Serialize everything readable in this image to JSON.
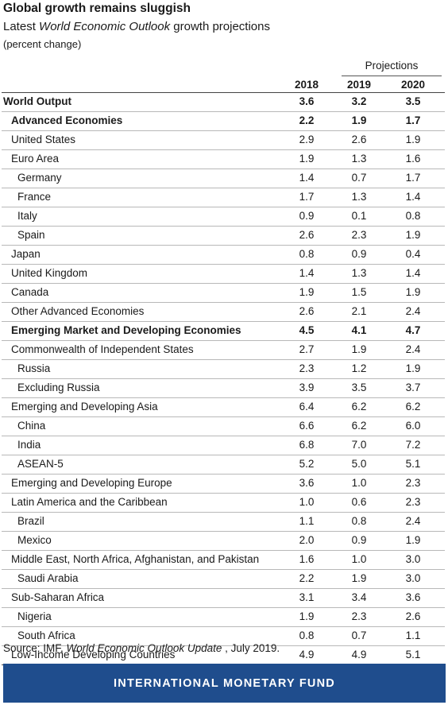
{
  "title": "Global growth remains sluggish",
  "subtitle": {
    "prefix": "Latest ",
    "italic": "World Economic Outlook",
    "suffix": " growth projections"
  },
  "unit": "(percent change)",
  "projections_label": "Projections",
  "years": [
    "2018",
    "2019",
    "2020"
  ],
  "rows": [
    {
      "label": "World Output",
      "indent": 0,
      "bold": true,
      "values": [
        "3.6",
        "3.2",
        "3.5"
      ]
    },
    {
      "label": "Advanced Economies",
      "indent": 1,
      "bold": true,
      "values": [
        "2.2",
        "1.9",
        "1.7"
      ]
    },
    {
      "label": "United States",
      "indent": 1,
      "bold": false,
      "values": [
        "2.9",
        "2.6",
        "1.9"
      ]
    },
    {
      "label": "Euro Area",
      "indent": 1,
      "bold": false,
      "values": [
        "1.9",
        "1.3",
        "1.6"
      ]
    },
    {
      "label": "Germany",
      "indent": 2,
      "bold": false,
      "values": [
        "1.4",
        "0.7",
        "1.7"
      ]
    },
    {
      "label": "France",
      "indent": 2,
      "bold": false,
      "values": [
        "1.7",
        "1.3",
        "1.4"
      ]
    },
    {
      "label": "Italy",
      "indent": 2,
      "bold": false,
      "values": [
        "0.9",
        "0.1",
        "0.8"
      ]
    },
    {
      "label": "Spain",
      "indent": 2,
      "bold": false,
      "values": [
        "2.6",
        "2.3",
        "1.9"
      ]
    },
    {
      "label": "Japan",
      "indent": 1,
      "bold": false,
      "values": [
        "0.8",
        "0.9",
        "0.4"
      ]
    },
    {
      "label": "United Kingdom",
      "indent": 1,
      "bold": false,
      "values": [
        "1.4",
        "1.3",
        "1.4"
      ]
    },
    {
      "label": "Canada",
      "indent": 1,
      "bold": false,
      "values": [
        "1.9",
        "1.5",
        "1.9"
      ]
    },
    {
      "label": "Other Advanced Economies",
      "indent": 1,
      "bold": false,
      "values": [
        "2.6",
        "2.1",
        "2.4"
      ]
    },
    {
      "label": "Emerging Market and Developing Economies",
      "indent": 1,
      "bold": true,
      "values": [
        "4.5",
        "4.1",
        "4.7"
      ]
    },
    {
      "label": "Commonwealth of Independent States",
      "indent": 1,
      "bold": false,
      "values": [
        "2.7",
        "1.9",
        "2.4"
      ]
    },
    {
      "label": "Russia",
      "indent": 2,
      "bold": false,
      "values": [
        "2.3",
        "1.2",
        "1.9"
      ]
    },
    {
      "label": "Excluding Russia",
      "indent": 2,
      "bold": false,
      "values": [
        "3.9",
        "3.5",
        "3.7"
      ]
    },
    {
      "label": "Emerging and Developing Asia",
      "indent": 1,
      "bold": false,
      "values": [
        "6.4",
        "6.2",
        "6.2"
      ]
    },
    {
      "label": "China",
      "indent": 2,
      "bold": false,
      "values": [
        "6.6",
        "6.2",
        "6.0"
      ]
    },
    {
      "label": "India",
      "indent": 2,
      "bold": false,
      "values": [
        "6.8",
        "7.0",
        "7.2"
      ]
    },
    {
      "label": "ASEAN-5",
      "indent": 2,
      "bold": false,
      "values": [
        "5.2",
        "5.0",
        "5.1"
      ]
    },
    {
      "label": "Emerging and Developing Europe",
      "indent": 1,
      "bold": false,
      "values": [
        "3.6",
        "1.0",
        "2.3"
      ]
    },
    {
      "label": "Latin America and the Caribbean",
      "indent": 1,
      "bold": false,
      "values": [
        "1.0",
        "0.6",
        "2.3"
      ]
    },
    {
      "label": "Brazil",
      "indent": 2,
      "bold": false,
      "values": [
        "1.1",
        "0.8",
        "2.4"
      ]
    },
    {
      "label": "Mexico",
      "indent": 2,
      "bold": false,
      "values": [
        "2.0",
        "0.9",
        "1.9"
      ]
    },
    {
      "label": "Middle East, North Africa, Afghanistan, and Pakistan",
      "indent": 1,
      "bold": false,
      "values": [
        "1.6",
        "1.0",
        "3.0"
      ]
    },
    {
      "label": "Saudi Arabia",
      "indent": 2,
      "bold": false,
      "values": [
        "2.2",
        "1.9",
        "3.0"
      ]
    },
    {
      "label": "Sub-Saharan Africa",
      "indent": 1,
      "bold": false,
      "values": [
        "3.1",
        "3.4",
        "3.6"
      ]
    },
    {
      "label": "Nigeria",
      "indent": 2,
      "bold": false,
      "values": [
        "1.9",
        "2.3",
        "2.6"
      ]
    },
    {
      "label": "South Africa",
      "indent": 2,
      "bold": false,
      "values": [
        "0.8",
        "0.7",
        "1.1"
      ]
    },
    {
      "label": "Low-Income Developing Countries",
      "indent": 1,
      "bold": false,
      "values": [
        "4.9",
        "4.9",
        "5.1"
      ]
    }
  ],
  "source": {
    "prefix": "Source: IMF, ",
    "italic": "World Economic Outlook Update",
    "suffix": " , July 2019."
  },
  "banner": "INTERNATIONAL MONETARY FUND",
  "colors": {
    "banner_bg": "#1f4d8d",
    "banner_text": "#ffffff"
  }
}
